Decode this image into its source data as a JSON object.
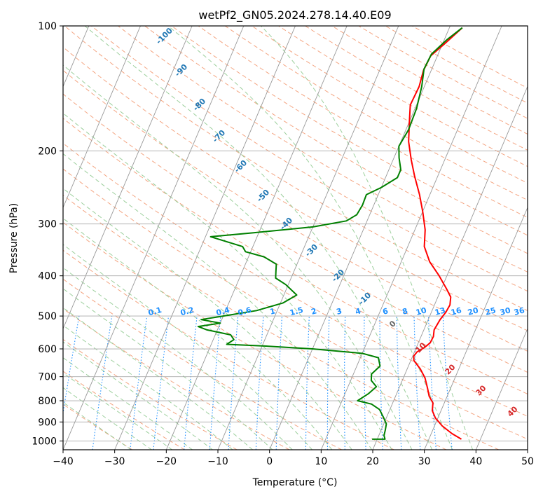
{
  "chart_data": {
    "type": "line",
    "title": "wetPf2_GN05.2024.278.14.40.E09",
    "xlabel": "Temperature (°C)",
    "ylabel": "Pressure (hPa)",
    "xlim": [
      -40,
      50
    ],
    "ylim": [
      1050,
      100
    ],
    "yscale": "log",
    "grid": true,
    "x_ticks": [
      "−40",
      "−30",
      "−20",
      "−10",
      "0",
      "10",
      "20",
      "30",
      "40",
      "50"
    ],
    "y_ticks": [
      "100",
      "200",
      "300",
      "400",
      "500",
      "600",
      "700",
      "800",
      "900",
      "1000"
    ],
    "colors": {
      "temperature": "#ff0000",
      "dewpoint": "#008000",
      "isotherm": "#999999",
      "dry_adiabat": "#f4a582",
      "moist_adiabat": "#9ccf9c",
      "mixing_ratio": "#1e90ff",
      "isotherm_label": "#1f77b4",
      "adiabat_label": "#d62728"
    },
    "series": [
      {
        "key": "temperature",
        "points": [
          [
            36.3,
            990
          ],
          [
            34.0,
            960
          ],
          [
            31.5,
            920
          ],
          [
            29.5,
            880
          ],
          [
            28.3,
            845
          ],
          [
            27.8,
            810
          ],
          [
            26.5,
            780
          ],
          [
            25.5,
            745
          ],
          [
            24.2,
            705
          ],
          [
            22.5,
            670
          ],
          [
            20.6,
            640
          ],
          [
            20.2,
            625
          ],
          [
            20.5,
            610
          ],
          [
            21.6,
            595
          ],
          [
            22.3,
            580
          ],
          [
            22.4,
            560
          ],
          [
            22.0,
            540
          ],
          [
            22.3,
            510
          ],
          [
            22.8,
            490
          ],
          [
            23.0,
            470
          ],
          [
            22.5,
            450
          ],
          [
            21.0,
            430
          ],
          [
            18.5,
            400
          ],
          [
            15.5,
            370
          ],
          [
            13.2,
            340
          ],
          [
            12.0,
            310
          ],
          [
            10.0,
            280
          ],
          [
            8.0,
            255
          ],
          [
            5.5,
            230
          ],
          [
            3.5,
            210
          ],
          [
            1.5,
            190
          ],
          [
            0.0,
            170
          ],
          [
            -1.2,
            155
          ],
          [
            -1.0,
            140
          ],
          [
            -1.5,
            128
          ],
          [
            -1.3,
            118
          ],
          [
            0.5,
            110
          ],
          [
            2.5,
            101
          ]
        ]
      },
      {
        "key": "dewpoint",
        "points": [
          [
            19.0,
            990
          ],
          [
            21.5,
            990
          ],
          [
            21.0,
            970
          ],
          [
            20.8,
            940
          ],
          [
            20.5,
            910
          ],
          [
            19.5,
            880
          ],
          [
            18.0,
            840
          ],
          [
            16.0,
            815
          ],
          [
            13.0,
            800
          ],
          [
            14.5,
            770
          ],
          [
            15.5,
            740
          ],
          [
            14.0,
            715
          ],
          [
            13.5,
            690
          ],
          [
            14.5,
            660
          ],
          [
            13.5,
            630
          ],
          [
            10.0,
            615
          ],
          [
            0.0,
            600
          ],
          [
            -10.0,
            590
          ],
          [
            -17.0,
            585
          ],
          [
            -16.0,
            570
          ],
          [
            -17.0,
            555
          ],
          [
            -22.0,
            540
          ],
          [
            -24.0,
            530
          ],
          [
            -20.0,
            520
          ],
          [
            -24.0,
            510
          ],
          [
            -20.0,
            500
          ],
          [
            -14.0,
            485
          ],
          [
            -9.5,
            465
          ],
          [
            -7.5,
            445
          ],
          [
            -10.5,
            420
          ],
          [
            -13.0,
            405
          ],
          [
            -13.5,
            390
          ],
          [
            -14.0,
            375
          ],
          [
            -17.0,
            360
          ],
          [
            -21.0,
            350
          ],
          [
            -22.0,
            340
          ],
          [
            -29.0,
            322
          ],
          [
            -21.0,
            315
          ],
          [
            -10.0,
            305
          ],
          [
            -4.0,
            295
          ],
          [
            -2.5,
            285
          ],
          [
            -2.2,
            270
          ],
          [
            -2.3,
            255
          ],
          [
            0.0,
            245
          ],
          [
            2.3,
            232
          ],
          [
            2.3,
            222
          ],
          [
            1.0,
            208
          ],
          [
            0.0,
            195
          ],
          [
            0.5,
            178
          ],
          [
            0.3,
            158
          ],
          [
            -0.5,
            140
          ],
          [
            -1.5,
            127
          ],
          [
            -1.3,
            117
          ],
          [
            0.5,
            108
          ],
          [
            2.5,
            101
          ]
        ]
      }
    ],
    "isotherm_labels": [
      "-100",
      "-90",
      "-80",
      "-70",
      "-60",
      "-50",
      "-40",
      "-30",
      "-20",
      "-10",
      "0"
    ],
    "mixing_ratio_labels": [
      "0.1",
      "0.2",
      "0.4",
      "0.6",
      "1",
      "1.5",
      "2",
      "3",
      "4",
      "6",
      "8",
      "10",
      "13",
      "16",
      "20",
      "25",
      "30",
      "36"
    ],
    "adiabat_labels": [
      "10",
      "20",
      "30",
      "40"
    ]
  }
}
